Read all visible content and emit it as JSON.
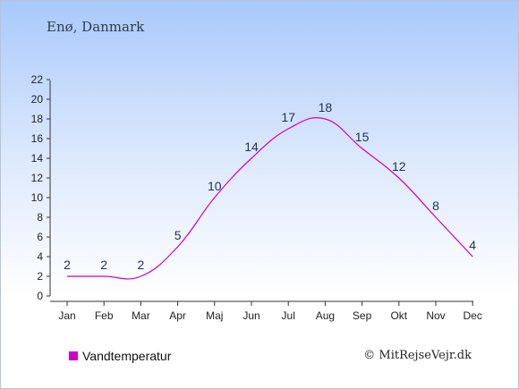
{
  "header": {
    "title": "Enø, Danmark"
  },
  "footer": {
    "copyright": "© MitRejseVejr.dk"
  },
  "colors": {
    "series": "#cc00cc",
    "axis": "#333333"
  },
  "chart_data": {
    "type": "line",
    "title": "Enø, Danmark",
    "categories": [
      "Jan",
      "Feb",
      "Mar",
      "Apr",
      "Maj",
      "Jun",
      "Jul",
      "Aug",
      "Sep",
      "Okt",
      "Nov",
      "Dec"
    ],
    "series": [
      {
        "name": "Vandtemperatur",
        "values": [
          2,
          2,
          2,
          5,
          10,
          14,
          17,
          18,
          15,
          12,
          8,
          4
        ]
      }
    ],
    "y_ticks": [
      "0",
      "2",
      "4",
      "6",
      "8",
      "10",
      "12",
      "14",
      "16",
      "18",
      "20",
      "22"
    ],
    "ylim": [
      0,
      22
    ],
    "grid": false,
    "legend": "bottom-left"
  }
}
